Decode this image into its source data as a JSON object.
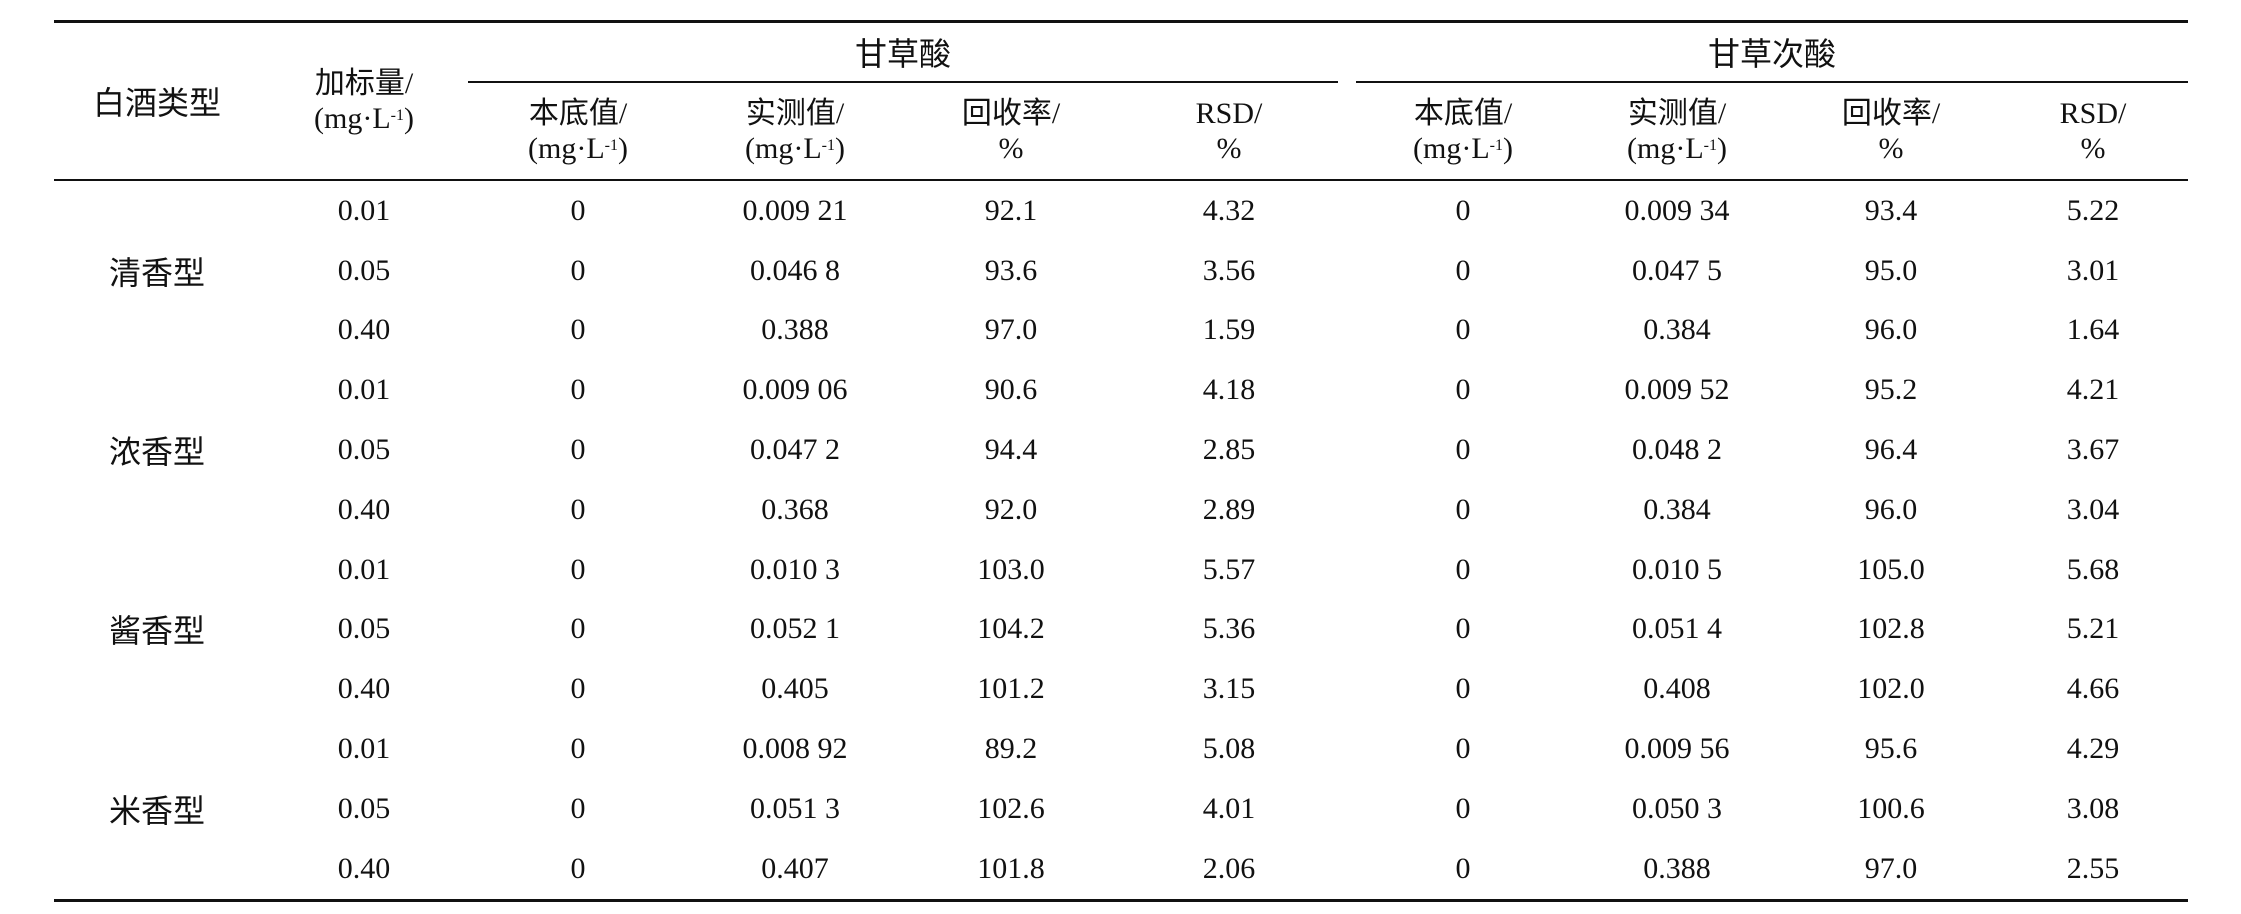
{
  "header": {
    "col_type": "白酒类型",
    "col_spike_line1": "加标量/",
    "col_spike_line2": "(mg·L",
    "col_spike_sup": "-1",
    "col_spike_close": ")",
    "group1": "甘草酸",
    "group2": "甘草次酸",
    "sub": [
      {
        "l1": "本底值/",
        "l2": "(mg·L",
        "sup": "-1",
        "close": ")"
      },
      {
        "l1": "实测值/",
        "l2": "(mg·L",
        "sup": "-1",
        "close": ")"
      },
      {
        "l1": "回收率/",
        "l2": "%"
      },
      {
        "l1": "RSD/",
        "l2": "%"
      },
      {
        "l1": "本底值/",
        "l2": "(mg·L",
        "sup": "-1",
        "close": ")"
      },
      {
        "l1": "实测值/",
        "l2": "(mg·L",
        "sup": "-1",
        "close": ")"
      },
      {
        "l1": "回收率/",
        "l2": "%"
      },
      {
        "l1": "RSD/",
        "l2": "%"
      }
    ]
  },
  "groups": [
    {
      "type": "清香型",
      "rows": [
        [
          "0.01",
          "0",
          "0.009 21",
          "92.1",
          "4.32",
          "0",
          "0.009 34",
          "93.4",
          "5.22"
        ],
        [
          "0.05",
          "0",
          "0.046 8",
          "93.6",
          "3.56",
          "0",
          "0.047 5",
          "95.0",
          "3.01"
        ],
        [
          "0.40",
          "0",
          "0.388",
          "97.0",
          "1.59",
          "0",
          "0.384",
          "96.0",
          "1.64"
        ]
      ]
    },
    {
      "type": "浓香型",
      "rows": [
        [
          "0.01",
          "0",
          "0.009 06",
          "90.6",
          "4.18",
          "0",
          "0.009 52",
          "95.2",
          "4.21"
        ],
        [
          "0.05",
          "0",
          "0.047 2",
          "94.4",
          "2.85",
          "0",
          "0.048 2",
          "96.4",
          "3.67"
        ],
        [
          "0.40",
          "0",
          "0.368",
          "92.0",
          "2.89",
          "0",
          "0.384",
          "96.0",
          "3.04"
        ]
      ]
    },
    {
      "type": "酱香型",
      "rows": [
        [
          "0.01",
          "0",
          "0.010 3",
          "103.0",
          "5.57",
          "0",
          "0.010 5",
          "105.0",
          "5.68"
        ],
        [
          "0.05",
          "0",
          "0.052 1",
          "104.2",
          "5.36",
          "0",
          "0.051 4",
          "102.8",
          "5.21"
        ],
        [
          "0.40",
          "0",
          "0.405",
          "101.2",
          "3.15",
          "0",
          "0.408",
          "102.0",
          "4.66"
        ]
      ]
    },
    {
      "type": "米香型",
      "rows": [
        [
          "0.01",
          "0",
          "0.008 92",
          "89.2",
          "5.08",
          "0",
          "0.009 56",
          "95.6",
          "4.29"
        ],
        [
          "0.05",
          "0",
          "0.051 3",
          "102.6",
          "4.01",
          "0",
          "0.050 3",
          "100.6",
          "3.08"
        ],
        [
          "0.40",
          "0",
          "0.407",
          "101.8",
          "2.06",
          "0",
          "0.388",
          "97.0",
          "2.55"
        ]
      ]
    }
  ]
}
